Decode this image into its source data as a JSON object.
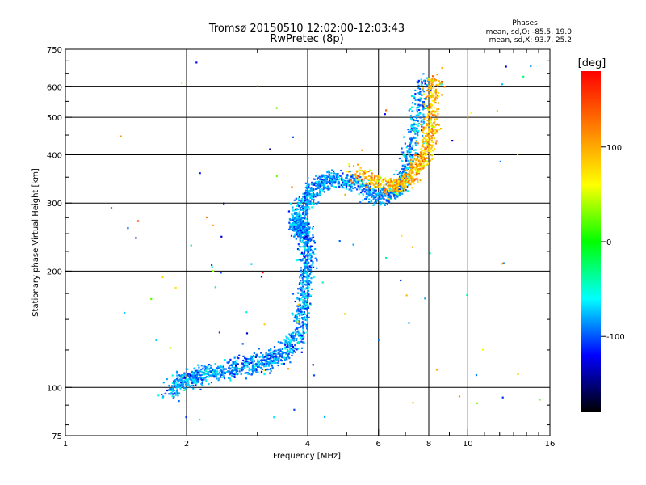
{
  "chart_data": {
    "type": "scatter",
    "title": "Tromsø 20150510 12:02:00-12:03:43",
    "subtitle": "RwPretec (8p)",
    "xlabel": "Frequency [MHz]",
    "ylabel": "Stationary phase Virtual Height [km]",
    "x_scale": "log",
    "y_scale": "log",
    "xlim": [
      1,
      16
    ],
    "ylim": [
      75,
      750
    ],
    "x_ticks": [
      1,
      2,
      4,
      6,
      8,
      10,
      16
    ],
    "x_tick_labels": [
      "1",
      "2",
      "4",
      "6",
      "8",
      "10",
      "16"
    ],
    "x_gridlines": [
      2,
      4,
      6,
      8,
      10
    ],
    "y_ticks": [
      75,
      100,
      200,
      300,
      400,
      500,
      600,
      750
    ],
    "y_tick_labels": [
      "75",
      "100",
      "200",
      "300",
      "400",
      "500",
      "600",
      "750"
    ],
    "y_gridlines": [
      100,
      200,
      300,
      400,
      500,
      600
    ],
    "grid": true,
    "stats": {
      "heading": "Phases",
      "line_o": "mean, sd,O: -85.5, 19.0",
      "line_x": "mean, sd,X:  93.7, 25.2"
    },
    "colorbar": {
      "label": "[deg]",
      "range": [
        -180,
        180
      ],
      "ticks": [
        100,
        0,
        -100
      ],
      "tick_labels": [
        "100",
        "0",
        "-100"
      ],
      "colormap": [
        "#ff0000",
        "#ff7f00",
        "#ffff00",
        "#00ff00",
        "#00ffff",
        "#0000ff",
        "#000000"
      ]
    },
    "traces": [
      {
        "phase_mean": -85.5,
        "phase_sd": 19.0,
        "x": [
          1.8,
          1.9,
          2.0,
          2.1,
          2.2,
          2.4,
          2.6,
          2.8,
          3.0,
          3.2,
          3.4,
          3.6,
          3.75,
          3.85,
          3.9,
          3.95,
          4.0,
          4.0,
          3.95,
          3.9,
          3.85,
          3.8,
          3.75,
          3.8,
          3.9,
          4.05,
          4.2,
          4.4,
          4.6,
          4.9,
          5.2,
          5.6,
          6.0,
          6.4,
          6.8,
          7.0,
          7.2,
          7.4,
          7.6,
          7.8
        ],
        "y": [
          95,
          103,
          105,
          106,
          108,
          110,
          112,
          114,
          116,
          118,
          120,
          125,
          135,
          150,
          165,
          180,
          200,
          220,
          240,
          255,
          262,
          262,
          258,
          275,
          295,
          315,
          330,
          340,
          345,
          345,
          340,
          322,
          312,
          315,
          330,
          355,
          400,
          460,
          540,
          620
        ]
      },
      {
        "phase_mean": 93.7,
        "phase_sd": 25.2,
        "x": [
          5.2,
          5.8,
          6.4,
          6.8,
          7.2,
          7.5,
          7.8,
          8.0,
          8.1,
          8.2,
          8.3
        ],
        "y": [
          360,
          345,
          330,
          340,
          350,
          370,
          400,
          430,
          480,
          560,
          640
        ]
      }
    ],
    "scatter_notes": "Blue points (O-mode) trace E region near 100-120 km at 2-3.7 MHz, rise steeply near 4 MHz to ~350 km F-layer, then climb toward 650 km approaching 8 MHz. Yellow/orange points (X-mode) form a trace at 6-8.3 MHz from ~330 km up to ~640 km. Scattered isolated points elsewhere."
  }
}
